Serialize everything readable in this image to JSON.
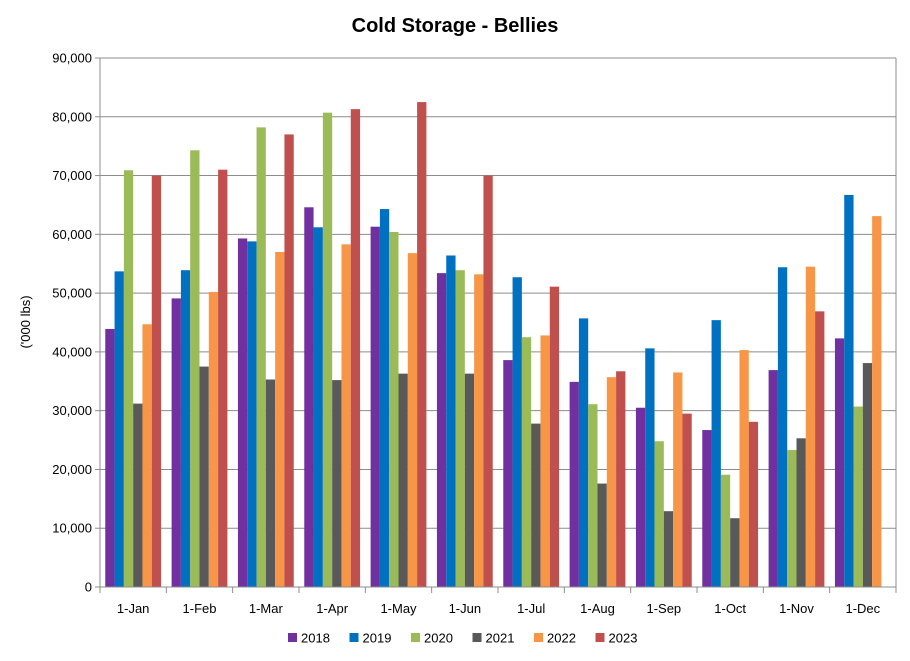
{
  "chart_data": {
    "type": "bar",
    "title": "Cold Storage - Bellies",
    "xlabel": "",
    "ylabel": "('000 lbs)",
    "ylim": [
      0,
      90000
    ],
    "yticks": [
      "0",
      "10,000",
      "20,000",
      "30,000",
      "40,000",
      "50,000",
      "60,000",
      "70,000",
      "80,000",
      "90,000"
    ],
    "grid": true,
    "legend_position": "bottom",
    "categories": [
      "1-Jan",
      "1-Feb",
      "1-Mar",
      "1-Apr",
      "1-May",
      "1-Jun",
      "1-Jul",
      "1-Aug",
      "1-Sep",
      "1-Oct",
      "1-Nov",
      "1-Dec"
    ],
    "series": [
      {
        "name": "2018",
        "color": "#7030A0",
        "values": [
          43900,
          49100,
          59300,
          64600,
          61300,
          53400,
          38600,
          34900,
          30500,
          26700,
          36900,
          42300
        ]
      },
      {
        "name": "2019",
        "color": "#0070C0",
        "values": [
          53700,
          53900,
          58800,
          61200,
          64300,
          56400,
          52700,
          45700,
          40600,
          45400,
          54400,
          66700
        ]
      },
      {
        "name": "2020",
        "color": "#9BBB59",
        "values": [
          70900,
          74300,
          78200,
          80700,
          60400,
          53900,
          42500,
          31100,
          24800,
          19100,
          23300,
          30700
        ]
      },
      {
        "name": "2021",
        "color": "#595959",
        "values": [
          31200,
          37500,
          35300,
          35200,
          36300,
          36300,
          27800,
          17600,
          12900,
          11700,
          25300,
          38100
        ]
      },
      {
        "name": "2022",
        "color": "#F79646",
        "values": [
          44700,
          50200,
          57000,
          58300,
          56800,
          53200,
          42800,
          35700,
          36500,
          40300,
          54500,
          63100
        ]
      },
      {
        "name": "2023",
        "color": "#C0504D",
        "values": [
          70000,
          71000,
          77000,
          81300,
          82500,
          70000,
          51100,
          36700,
          29500,
          28100,
          46900,
          null
        ]
      }
    ]
  }
}
